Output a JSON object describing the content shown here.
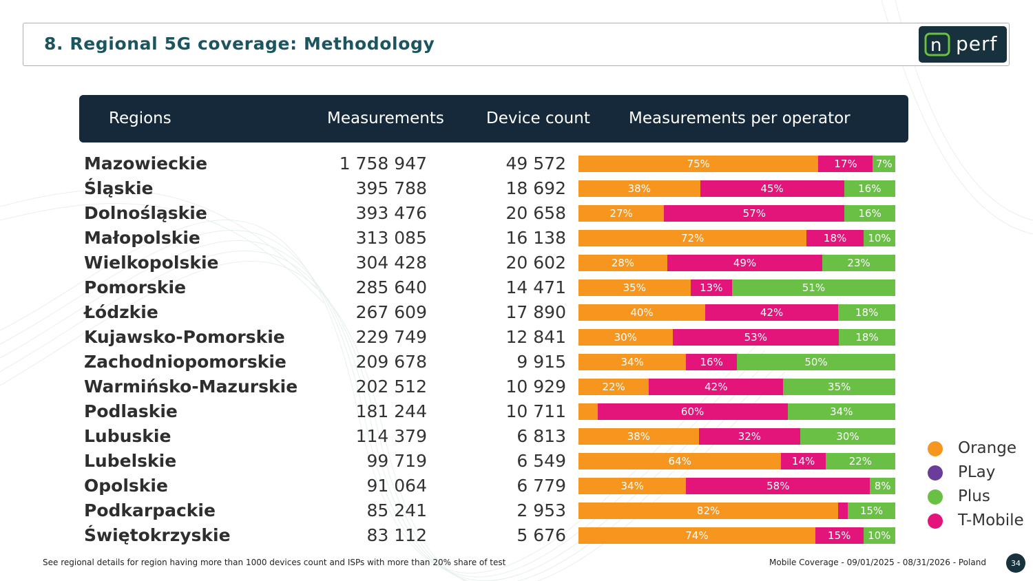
{
  "header": {
    "title": "8. Regional 5G coverage: Methodology",
    "logo_text": "nperf"
  },
  "table": {
    "columns": [
      "Regions",
      "Measurements",
      "Device count",
      "Measurements per operator"
    ]
  },
  "colors": {
    "Orange": "#f7961e",
    "PLay": "#6a3d9a",
    "Plus": "#6abf45",
    "T-Mobile": "#e3147a"
  },
  "chart_data": {
    "type": "bar",
    "stacked": true,
    "normalized": true,
    "orientation": "horizontal",
    "categories": [
      "Mazowieckie",
      "Śląskie",
      "Dolnośląskie",
      "Małopolskie",
      "Wielkopolskie",
      "Pomorskie",
      "Łódzkie",
      "Kujawsko-Pomorskie",
      "Zachodniopomorskie",
      "Warmińsko-Mazurskie",
      "Podlaskie",
      "Lubuskie",
      "Lubelskie",
      "Opolskie",
      "Podkarpackie",
      "Świętokrzyskie"
    ],
    "measurements": [
      "1 758 947",
      "395 788",
      "393 476",
      "313 085",
      "304 428",
      "285 640",
      "267 609",
      "229 749",
      "209 678",
      "202 512",
      "181 244",
      "114 379",
      "99 719",
      "91 064",
      "85 241",
      "83 112"
    ],
    "device_count": [
      "49 572",
      "18 692",
      "20 658",
      "16 138",
      "20 602",
      "14 471",
      "17 890",
      "12 841",
      "9 915",
      "10 929",
      "10 711",
      "6 813",
      "6 549",
      "6 779",
      "2 953",
      "5 676"
    ],
    "series": [
      {
        "name": "Orange",
        "values": [
          75,
          38,
          27,
          72,
          28,
          35,
          40,
          30,
          34,
          22,
          6,
          38,
          64,
          34,
          82,
          74
        ]
      },
      {
        "name": "PLay",
        "values": [
          0,
          0,
          0,
          0,
          0,
          0,
          0,
          0,
          0,
          0,
          0,
          0,
          0,
          0,
          0,
          0
        ]
      },
      {
        "name": "T-Mobile",
        "values": [
          17,
          45,
          57,
          18,
          49,
          13,
          42,
          53,
          16,
          42,
          60,
          32,
          14,
          58,
          3,
          15
        ]
      },
      {
        "name": "Plus",
        "values": [
          7,
          16,
          16,
          10,
          23,
          51,
          18,
          18,
          50,
          35,
          34,
          30,
          22,
          8,
          15,
          10
        ]
      }
    ],
    "labels": [
      [
        "75%",
        "17%",
        "7%"
      ],
      [
        "38%",
        "45%",
        "16%"
      ],
      [
        "27%",
        "57%",
        "16%"
      ],
      [
        "72%",
        "18%",
        "10%"
      ],
      [
        "28%",
        "49%",
        "23%"
      ],
      [
        "35%",
        "13%",
        "51%"
      ],
      [
        "40%",
        "42%",
        "18%"
      ],
      [
        "30%",
        "53%",
        "18%"
      ],
      [
        "34%",
        "16%",
        "50%"
      ],
      [
        "22%",
        "42%",
        "35%"
      ],
      [
        "",
        "60%",
        "34%"
      ],
      [
        "38%",
        "32%",
        "30%"
      ],
      [
        "64%",
        "14%",
        "22%"
      ],
      [
        "34%",
        "58%",
        "8%"
      ],
      [
        "82%",
        "",
        "15%"
      ],
      [
        "74%",
        "15%",
        "10%"
      ]
    ],
    "legend": [
      "Orange",
      "PLay",
      "Plus",
      "T-Mobile"
    ],
    "legend_position": "right"
  },
  "footer": {
    "note": "See regional details for region having more than 1000 devices count and ISPs with more than 20% share of test",
    "source": "Mobile Coverage - 09/01/2025 - 08/31/2026 - Poland",
    "page": "34"
  }
}
